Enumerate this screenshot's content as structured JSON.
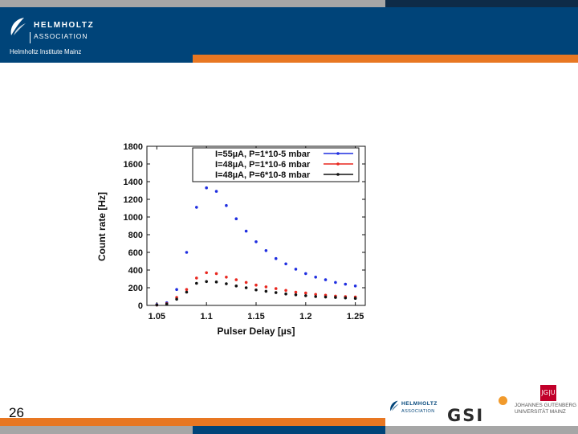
{
  "header": {
    "logo_name": "HELMHOLTZ",
    "logo_subtitle": "ASSOCIATION",
    "institute": "Helmholtz Institute Mainz"
  },
  "footer": {
    "slide_number": "26",
    "partner_helmholtz_name": "HELMHOLTZ",
    "partner_helmholtz_subtitle": "ASSOCIATION",
    "partner_gsi": "GSI",
    "partner_jgu_box": "JG|U",
    "partner_jgu_line1": "JOHANNES GUTENBERG",
    "partner_jgu_line2": "UNIVERSITÄT MAINZ"
  },
  "colors": {
    "header_blue": "#004479",
    "accent_orange": "#e87722",
    "series_blue": "#1f2ee0",
    "series_red": "#e8271f",
    "series_black": "#111111"
  },
  "chart_data": {
    "type": "scatter",
    "title": "",
    "xlabel": "Pulser Delay [µs]",
    "ylabel": "Count rate [Hz]",
    "xlim": [
      1.04,
      1.26
    ],
    "ylim": [
      0,
      1800
    ],
    "xticks": [
      "1.05",
      "1.1",
      "1.15",
      "1.2",
      "1.25"
    ],
    "xtick_values": [
      1.05,
      1.1,
      1.15,
      1.2,
      1.25
    ],
    "yticks": [
      "0",
      "200",
      "400",
      "600",
      "800",
      "1000",
      "1200",
      "1400",
      "1600",
      "1800"
    ],
    "ytick_values": [
      0,
      200,
      400,
      600,
      800,
      1000,
      1200,
      1400,
      1600,
      1800
    ],
    "grid": false,
    "legend_position": "top-right",
    "series": [
      {
        "name": "I=55µA, P=1*10-5 mbar",
        "color": "#1f2ee0",
        "x": [
          1.05,
          1.06,
          1.07,
          1.08,
          1.09,
          1.1,
          1.11,
          1.12,
          1.13,
          1.14,
          1.15,
          1.16,
          1.17,
          1.18,
          1.19,
          1.2,
          1.21,
          1.22,
          1.23,
          1.24,
          1.25
        ],
        "y": [
          10,
          30,
          180,
          600,
          1110,
          1330,
          1290,
          1130,
          980,
          840,
          720,
          620,
          530,
          470,
          410,
          360,
          320,
          290,
          260,
          240,
          220
        ]
      },
      {
        "name": "I=48µA, P=1*10-6 mbar",
        "color": "#e8271f",
        "x": [
          1.05,
          1.06,
          1.07,
          1.08,
          1.09,
          1.1,
          1.11,
          1.12,
          1.13,
          1.14,
          1.15,
          1.16,
          1.17,
          1.18,
          1.19,
          1.2,
          1.21,
          1.22,
          1.23,
          1.24,
          1.25
        ],
        "y": [
          5,
          20,
          90,
          180,
          310,
          370,
          360,
          320,
          290,
          260,
          230,
          210,
          190,
          170,
          150,
          140,
          125,
          115,
          105,
          100,
          95
        ]
      },
      {
        "name": "I=48µA, P=6*10-8 mbar",
        "color": "#111111",
        "x": [
          1.05,
          1.06,
          1.07,
          1.08,
          1.09,
          1.1,
          1.11,
          1.12,
          1.13,
          1.14,
          1.15,
          1.16,
          1.17,
          1.18,
          1.19,
          1.2,
          1.21,
          1.22,
          1.23,
          1.24,
          1.25
        ],
        "y": [
          5,
          15,
          70,
          150,
          250,
          270,
          265,
          245,
          220,
          200,
          175,
          160,
          145,
          130,
          120,
          110,
          100,
          95,
          90,
          85,
          80
        ]
      }
    ]
  }
}
